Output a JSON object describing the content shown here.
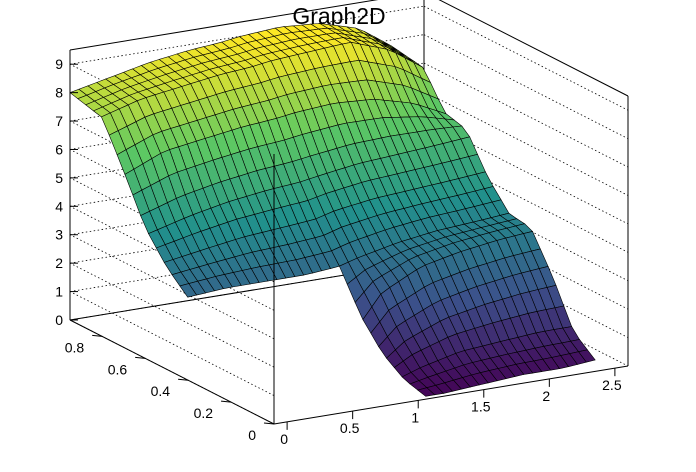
{
  "chart_data": {
    "type": "surface",
    "title": "Graph2D",
    "xlabel": "",
    "ylabel": "",
    "zlabel": "",
    "xlim": [
      -0.1,
      2.6
    ],
    "ylim": [
      0,
      0.95
    ],
    "zlim": [
      0,
      9.5
    ],
    "x_ticks": [
      "0",
      "0.5",
      "1",
      "1.5",
      "2",
      "2.5"
    ],
    "x_tick_values": [
      0,
      0.5,
      1,
      1.5,
      2,
      2.5
    ],
    "y_ticks": [
      "0",
      "0.2",
      "0.4",
      "0.6",
      "0.8"
    ],
    "y_tick_values": [
      0,
      0.2,
      0.4,
      0.6,
      0.8
    ],
    "z_ticks": [
      "0",
      "1",
      "2",
      "3",
      "4",
      "5",
      "6",
      "7",
      "8",
      "9"
    ],
    "z_tick_values": [
      0,
      1,
      2,
      3,
      4,
      5,
      6,
      7,
      8,
      9
    ],
    "grid": true,
    "palette": "viridis",
    "grid_samples": {
      "x": [
        -0.1,
        0.2,
        0.5,
        0.8,
        1.05,
        1.2,
        1.5,
        1.8,
        2.1,
        2.35
      ],
      "y": [
        0.0,
        0.1,
        0.2,
        0.3,
        0.4,
        0.5,
        0.6,
        0.7,
        0.8,
        0.95
      ],
      "z_rows": [
        [
          null,
          null,
          null,
          null,
          0.1,
          0.1,
          0.2,
          0.3,
          0.3,
          0.4
        ],
        [
          null,
          null,
          null,
          null,
          0.3,
          0.5,
          0.8,
          0.9,
          1.0,
          1.0
        ],
        [
          null,
          null,
          null,
          null,
          0.8,
          1.4,
          2.0,
          2.3,
          2.5,
          2.6
        ],
        [
          null,
          null,
          null,
          null,
          1.7,
          2.6,
          3.3,
          3.6,
          3.8,
          3.9
        ],
        [
          2.9,
          3.0,
          3.0,
          3.0,
          3.1,
          3.3,
          3.6,
          3.8,
          3.9,
          4.0
        ],
        [
          3.6,
          3.8,
          4.0,
          4.1,
          4.2,
          4.4,
          4.6,
          4.7,
          4.8,
          4.9
        ],
        [
          4.6,
          5.0,
          5.3,
          5.5,
          5.6,
          5.7,
          5.9,
          6.0,
          6.1,
          6.2
        ],
        [
          6.2,
          6.8,
          7.0,
          7.2,
          7.3,
          7.4,
          7.5,
          7.4,
          7.0,
          6.4
        ],
        [
          7.7,
          8.1,
          8.3,
          8.5,
          8.6,
          8.7,
          8.8,
          8.9,
          8.4,
          7.6
        ],
        [
          8.0,
          8.3,
          8.6,
          8.8,
          8.9,
          9.0,
          9.1,
          9.0,
          8.6,
          7.8
        ]
      ]
    }
  }
}
